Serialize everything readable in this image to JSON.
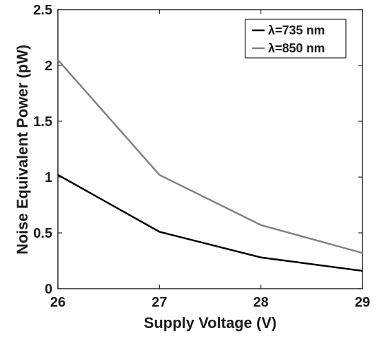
{
  "chart_data": {
    "type": "line",
    "xlabel": "Supply Voltage (V)",
    "ylabel": "Noise Equivalent Power (pW)",
    "xlim": [
      26,
      29
    ],
    "ylim": [
      0,
      2.5
    ],
    "xticks": [
      "26",
      "27",
      "28",
      "29"
    ],
    "yticks": [
      "0",
      "0.5",
      "1",
      "1.5",
      "2",
      "2.5"
    ],
    "x": [
      26,
      27,
      28,
      29
    ],
    "grid": false,
    "legend_position": "top-right",
    "series": [
      {
        "name": "λ=735 nm",
        "color": "#000000",
        "values": [
          1.02,
          0.51,
          0.28,
          0.16
        ]
      },
      {
        "name": "λ=850 nm",
        "color": "#808080",
        "values": [
          2.05,
          1.02,
          0.57,
          0.32
        ]
      }
    ]
  }
}
